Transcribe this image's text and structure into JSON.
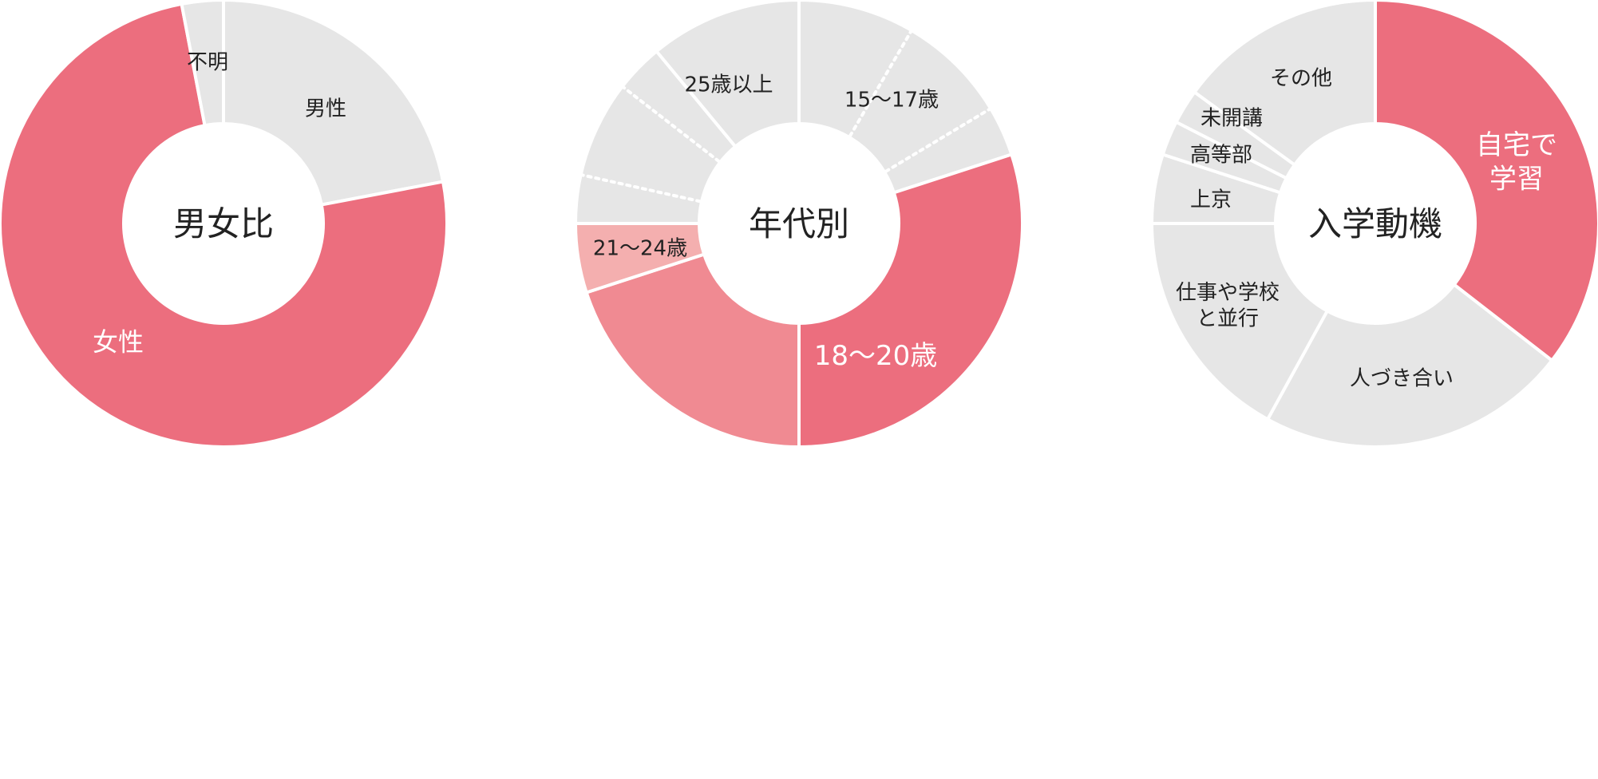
{
  "colors": {
    "gray": "#e6e6e6",
    "pink": "#ec6e7e",
    "pink_medium": "#f08a92",
    "pink_light": "#f4afaf",
    "separator": "#ffffff",
    "text_dark": "#222222",
    "text_light": "#ffffff"
  },
  "chart_data": [
    {
      "type": "pie",
      "center_label": "男女比",
      "slices": [
        {
          "label": "男性",
          "value": 22,
          "color": "gray",
          "label_color": "text_dark"
        },
        {
          "label": "女性",
          "value": 75,
          "color": "pink",
          "label_color": "text_light"
        },
        {
          "label": "不明",
          "value": 3,
          "color": "gray",
          "label_color": "text_dark"
        }
      ]
    },
    {
      "type": "pie",
      "center_label": "年代別",
      "slices": [
        {
          "label": "15～17歳",
          "value": 20,
          "color": "gray",
          "label_color": "text_dark"
        },
        {
          "label": "",
          "value": 30,
          "color": "pink",
          "label_color": "text_light"
        },
        {
          "label": "18～20歳",
          "value": 20,
          "color": "pink_medium",
          "label_color": "text_light"
        },
        {
          "label": "",
          "value": 5,
          "color": "pink_light",
          "label_color": "text_dark"
        },
        {
          "label": "21～24歳",
          "value": 14,
          "color": "gray",
          "label_color": "text_dark"
        },
        {
          "label": "25歳以上",
          "value": 11,
          "color": "gray",
          "label_color": "text_dark"
        }
      ]
    },
    {
      "type": "pie",
      "center_label": "入学動機",
      "slices": [
        {
          "label": "自宅で\n学習",
          "value": 35.5,
          "color": "pink",
          "label_color": "text_light"
        },
        {
          "label": "人づき合い",
          "value": 22.5,
          "color": "gray",
          "label_color": "text_dark"
        },
        {
          "label": "仕事や学校\nと並行",
          "value": 17,
          "color": "gray",
          "label_color": "text_dark"
        },
        {
          "label": "上京",
          "value": 5,
          "color": "gray",
          "label_color": "text_dark"
        },
        {
          "label": "高等部",
          "value": 2.5,
          "color": "gray",
          "label_color": "text_dark"
        },
        {
          "label": "未開講",
          "value": 2.5,
          "color": "gray",
          "label_color": "text_dark"
        },
        {
          "label": "その他",
          "value": 15,
          "color": "gray",
          "label_color": "text_dark"
        }
      ]
    }
  ]
}
